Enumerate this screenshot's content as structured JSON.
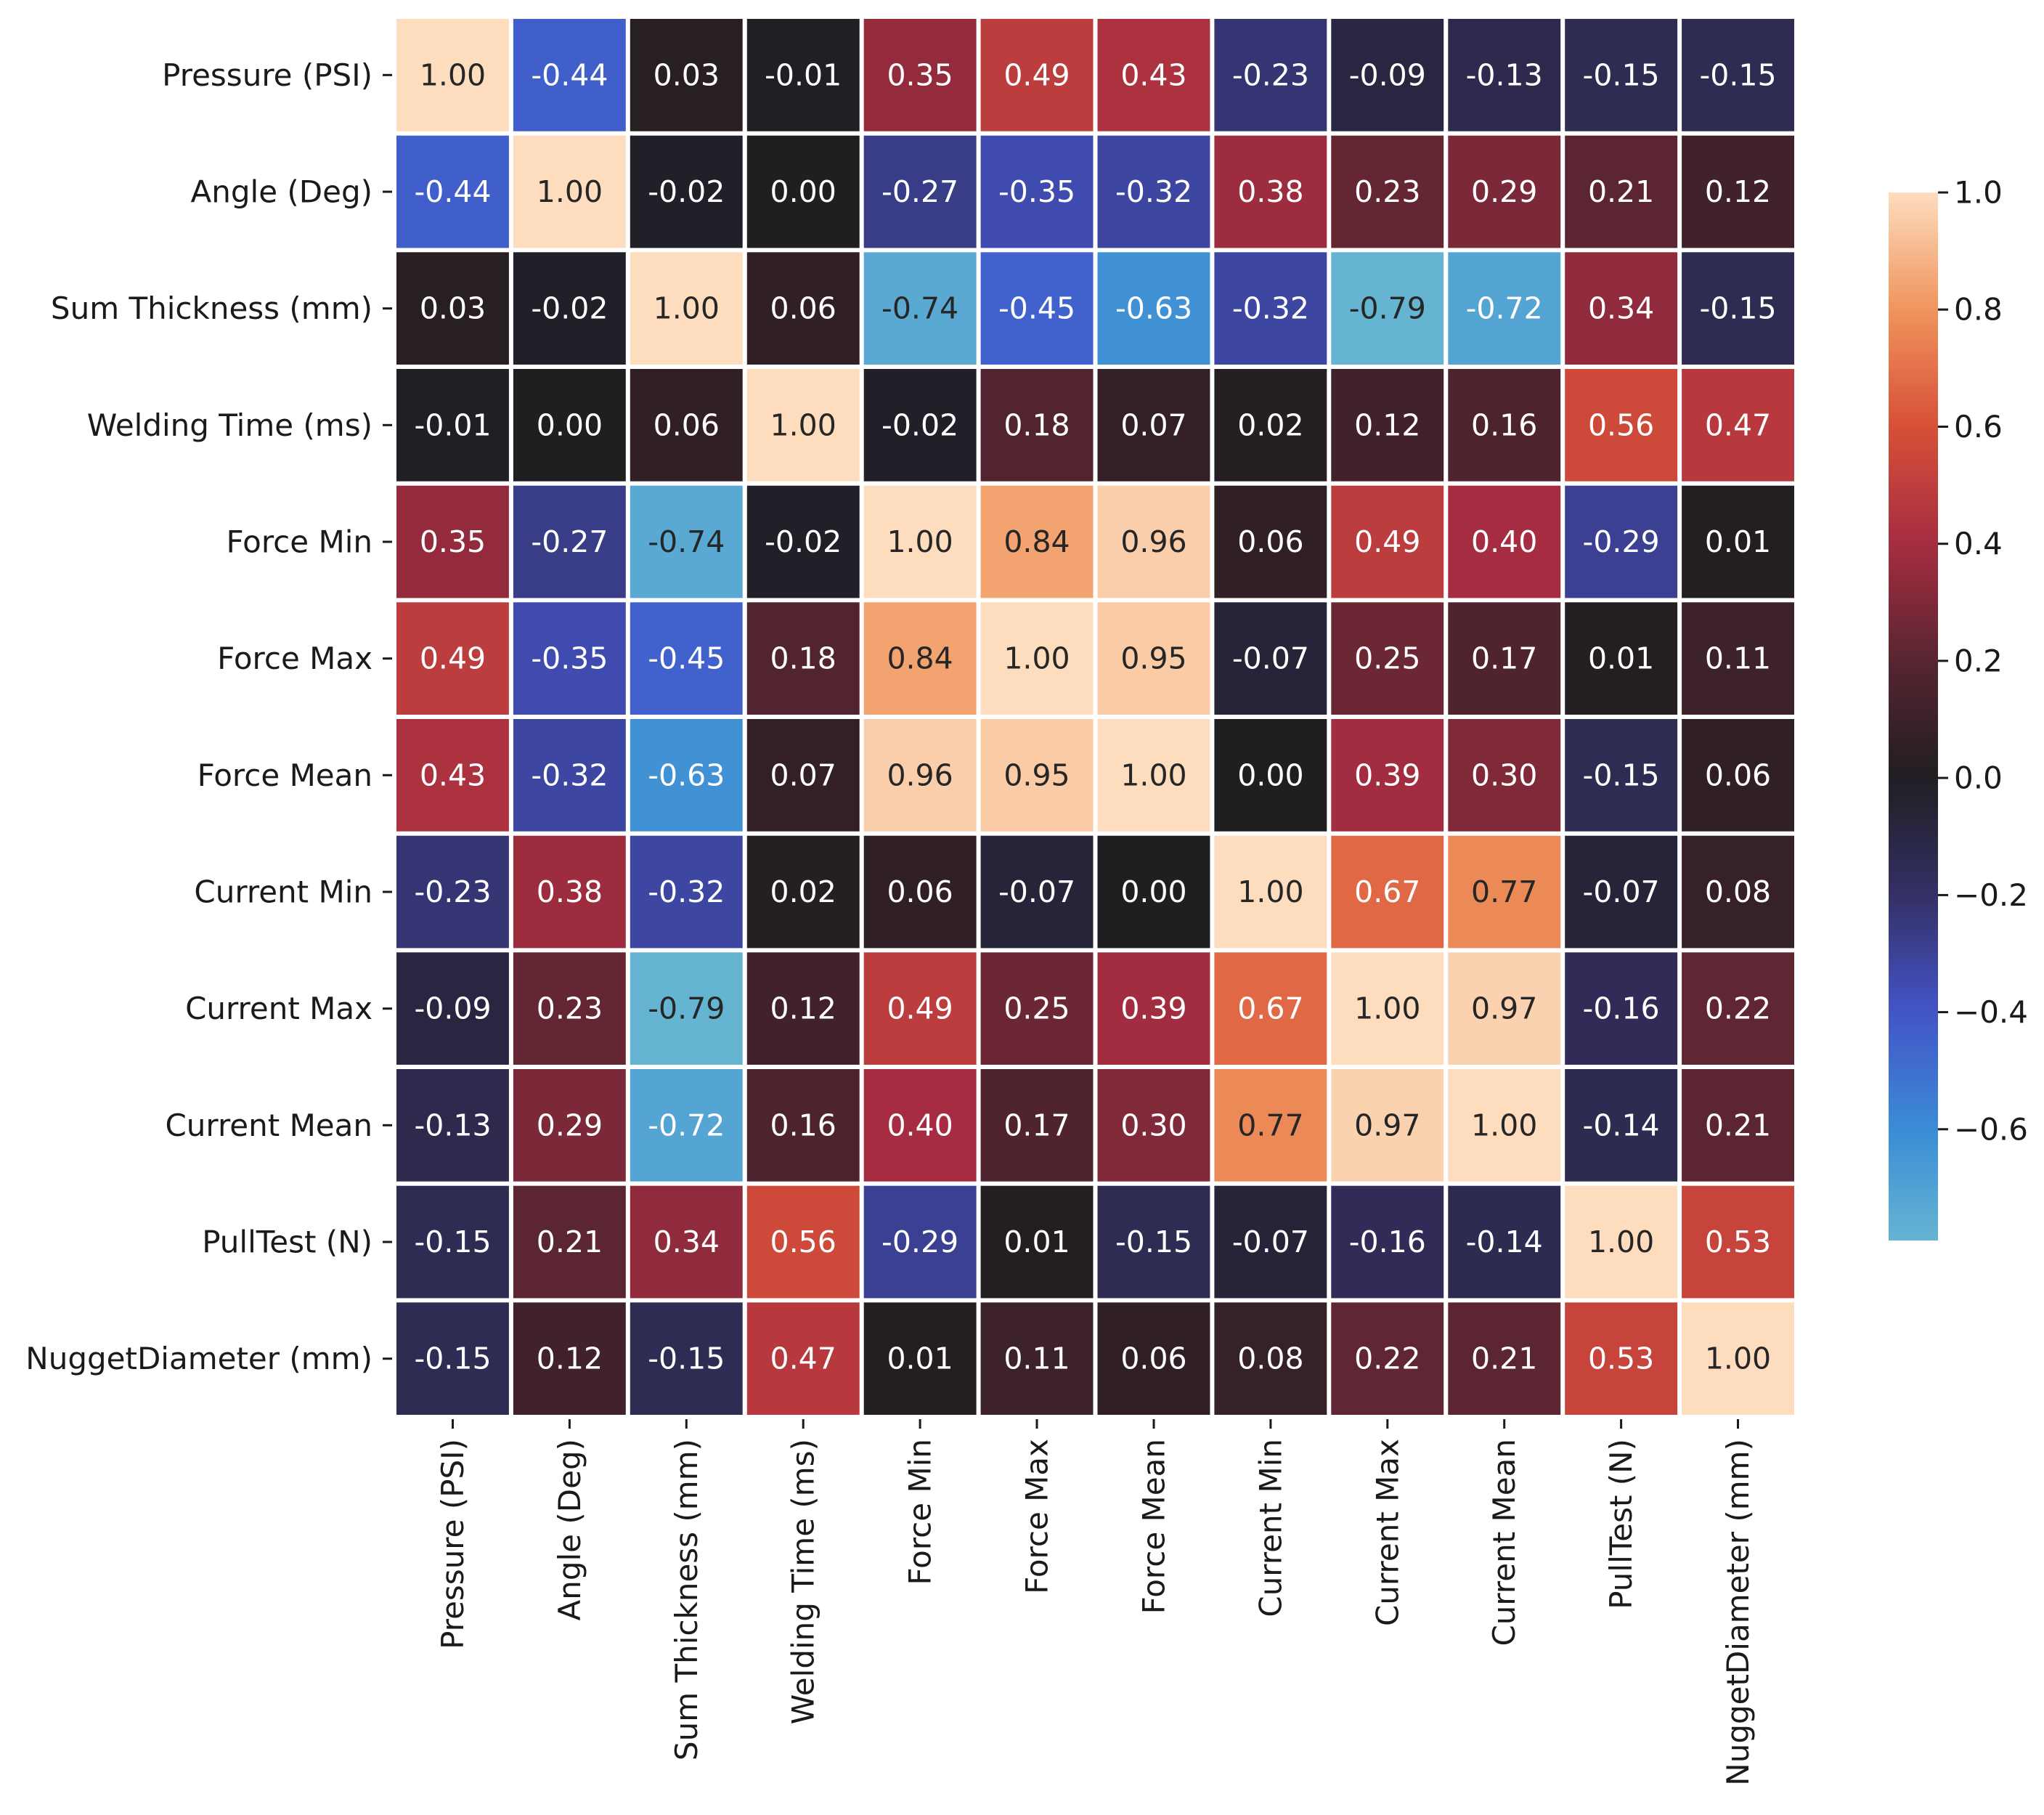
{
  "chart_data": {
    "type": "heatmap",
    "title": "",
    "xlabel": "",
    "ylabel": "",
    "rows": [
      "Pressure (PSI)",
      "Angle (Deg)",
      "Sum Thickness (mm)",
      "Welding Time (ms)",
      "Force Min",
      "Force Max",
      "Force Mean",
      "Current Min",
      "Current Max",
      "Current Mean",
      "PullTest (N)",
      "NuggetDiameter (mm)"
    ],
    "columns": [
      "Pressure (PSI)",
      "Angle (Deg)",
      "Sum Thickness (mm)",
      "Welding Time (ms)",
      "Force Min",
      "Force Max",
      "Force Mean",
      "Current Min",
      "Current Max",
      "Current Mean",
      "PullTest (N)",
      "NuggetDiameter (mm)"
    ],
    "values": [
      [
        1.0,
        -0.44,
        0.03,
        -0.01,
        0.35,
        0.49,
        0.43,
        -0.23,
        -0.09,
        -0.13,
        -0.15,
        -0.15
      ],
      [
        -0.44,
        1.0,
        -0.02,
        -0.0,
        -0.27,
        -0.35,
        -0.32,
        0.38,
        0.23,
        0.29,
        0.21,
        0.12
      ],
      [
        0.03,
        -0.02,
        1.0,
        0.06,
        -0.74,
        -0.45,
        -0.63,
        -0.32,
        -0.79,
        -0.72,
        0.34,
        -0.15
      ],
      [
        -0.01,
        -0.0,
        0.06,
        1.0,
        -0.02,
        0.18,
        0.07,
        0.02,
        0.12,
        0.16,
        0.56,
        0.47
      ],
      [
        0.35,
        -0.27,
        -0.74,
        -0.02,
        1.0,
        0.84,
        0.96,
        0.06,
        0.49,
        0.4,
        -0.29,
        0.01
      ],
      [
        0.49,
        -0.35,
        -0.45,
        0.18,
        0.84,
        1.0,
        0.95,
        -0.07,
        0.25,
        0.17,
        0.01,
        0.11
      ],
      [
        0.43,
        -0.32,
        -0.63,
        0.07,
        0.96,
        0.95,
        1.0,
        0.0,
        0.39,
        0.3,
        -0.15,
        0.06
      ],
      [
        -0.23,
        0.38,
        -0.32,
        0.02,
        0.06,
        -0.07,
        0.0,
        1.0,
        0.67,
        0.77,
        -0.07,
        0.08
      ],
      [
        -0.09,
        0.23,
        -0.79,
        0.12,
        0.49,
        0.25,
        0.39,
        0.67,
        1.0,
        0.97,
        -0.16,
        0.22
      ],
      [
        -0.13,
        0.29,
        -0.72,
        0.16,
        0.4,
        0.17,
        0.3,
        0.77,
        0.97,
        1.0,
        -0.14,
        0.21
      ],
      [
        -0.15,
        0.21,
        0.34,
        0.56,
        -0.29,
        0.01,
        -0.15,
        -0.07,
        -0.16,
        -0.14,
        1.0,
        0.53
      ],
      [
        -0.15,
        0.12,
        -0.15,
        0.47,
        0.01,
        0.11,
        0.06,
        0.08,
        0.22,
        0.21,
        0.53,
        1.0
      ]
    ],
    "value_format": "2 decimals",
    "colormap": "icefire",
    "colorbar": {
      "vmin": -0.79,
      "vmax": 1.0,
      "center": 0.0,
      "ticks": [
        1.0,
        0.8,
        0.6,
        0.4,
        0.2,
        0.0,
        -0.2,
        -0.4,
        -0.6
      ],
      "tick_labels": [
        "1.0",
        "0.8",
        "0.6",
        "0.4",
        "0.2",
        "0.0",
        "−0.2",
        "−0.4",
        "−0.6"
      ],
      "position": "right"
    },
    "cell_separator_color": "#ffffff",
    "grid": false
  }
}
